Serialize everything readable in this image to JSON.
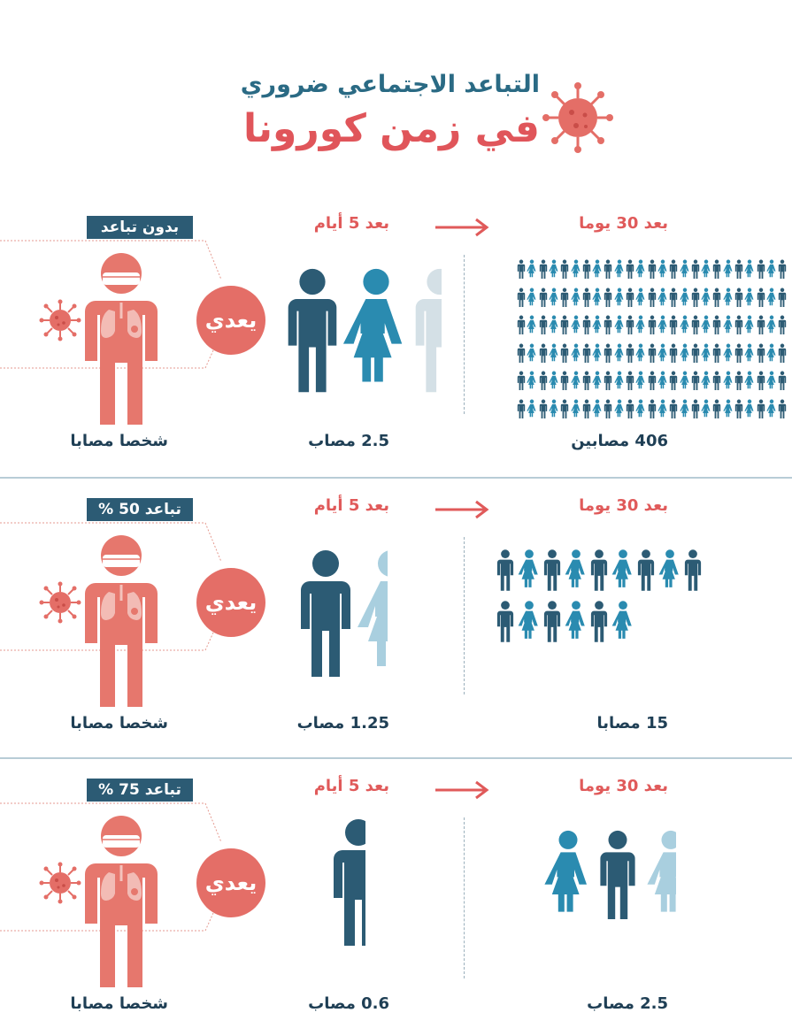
{
  "title": {
    "line1": "التباعد الاجتماعي ضروري",
    "line2": "في زمن كورونا"
  },
  "colors": {
    "accent_red": "#e0555a",
    "figure_red": "#e6776d",
    "dark_blue": "#2c5b74",
    "mid_blue": "#2a8bb0",
    "light_blue": "#a9cfdf"
  },
  "icons": [
    "virus-icon",
    "person-icon",
    "arrow-icon"
  ],
  "rows": [
    {
      "badge": "بدون تباعد",
      "infects": "يعدي",
      "patient_label": "شخصا مصابا",
      "after5_heading": "بعد 5 أيام",
      "after5_caption": "2.5 مصاب",
      "after30_heading": "بعد 30 يوما",
      "after30_caption": "406 مصابين",
      "after5_value": 2.5,
      "after30_value": 406
    },
    {
      "badge": "تباعد 50 %",
      "infects": "يعدي",
      "patient_label": "شخصا مصابا",
      "after5_heading": "بعد 5 أيام",
      "after5_caption": "1.25 مصاب",
      "after30_heading": "بعد 30 يوما",
      "after30_caption": "15 مصابا",
      "after5_value": 1.25,
      "after30_value": 15
    },
    {
      "badge": "تباعد 75 %",
      "infects": "يعدي",
      "patient_label": "شخصا مصابا",
      "after5_heading": "بعد 5 أيام",
      "after5_caption": "0.6 مصاب",
      "after30_heading": "بعد 30 يوما",
      "after30_caption": "2.5 مصاب",
      "after5_value": 0.6,
      "after30_value": 2.5
    }
  ]
}
